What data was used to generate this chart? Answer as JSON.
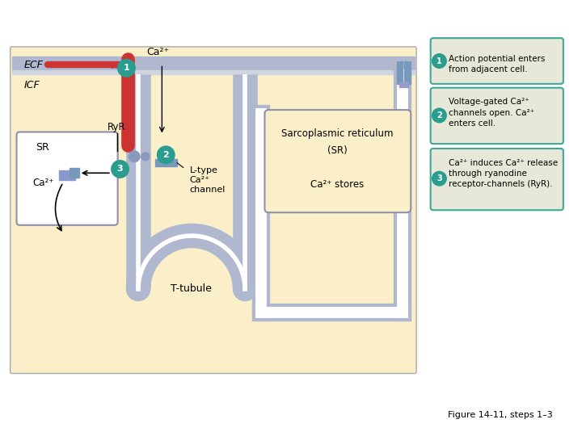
{
  "bg_color": "#FAEFC8",
  "white_bg": "#FFFFFF",
  "cell_membrane_color": "#B0B8D0",
  "ecf_label": "ECF",
  "icf_label": "ICF",
  "ca2_label": "Ca²⁺",
  "t_tubule_label": "T-tubule",
  "sr_label": "SR",
  "ltype_label": "L-type\nCa²⁺\nchannel",
  "ryr_label": "RyR",
  "sr_box_label": "Sarcoplasmic reticulum\n(SR)\n\nCa²⁺ stores",
  "step1_text": "Action potential enters\nfrom adjacent cell.",
  "step2_text": "Voltage-gated Ca²⁺\nchannels open. Ca²⁺\nenters cell.",
  "step3_text": "Ca²⁺ induces Ca²⁺ release\nthrough ryanodine\nreceptor-channels (RyR).",
  "teal_circle": "#2A9D8F",
  "red_arrow_color": "#CC3333",
  "legend_bg": "#E8E8D8",
  "legend_border": "#3DA89A",
  "figure_label": "Figure 14-11, steps 1–3"
}
